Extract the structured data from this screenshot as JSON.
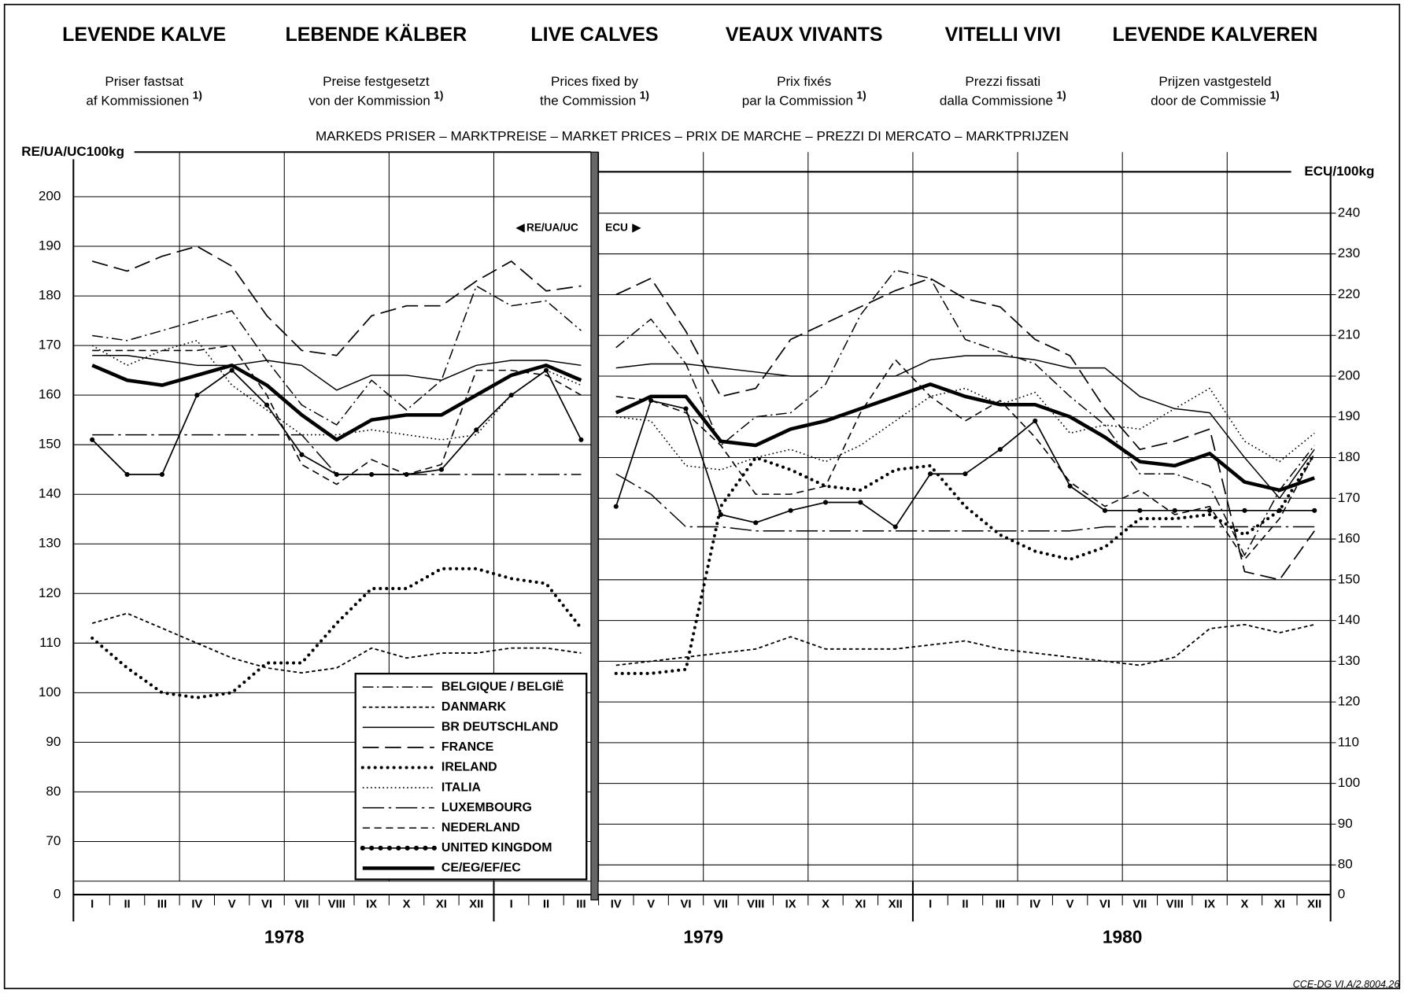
{
  "header": {
    "columns": [
      {
        "title": "LEVENDE KALVE",
        "lines": [
          "Priser fastsat",
          "af Kommissionen"
        ],
        "note": "1)"
      },
      {
        "title": "LEBENDE KÄLBER",
        "lines": [
          "Preise festgesetzt",
          "von der Kommission"
        ],
        "note": "1)"
      },
      {
        "title": "LIVE CALVES",
        "lines": [
          "Prices fixed by",
          "the Commission"
        ],
        "note": "1)"
      },
      {
        "title": "VEAUX VIVANTS",
        "lines": [
          "Prix fixés",
          "par la Commission"
        ],
        "note": "1)"
      },
      {
        "title": "VITELLI VIVI",
        "lines": [
          "Prezzi fissati",
          "dalla Commissione"
        ],
        "note": "1)"
      },
      {
        "title": "LEVENDE KALVEREN",
        "lines": [
          "Prijzen vastgesteld",
          "door de Commissie"
        ],
        "note": "1)"
      }
    ]
  },
  "footer": "CCE-DG VI.A/2.8004.26",
  "chart_data": {
    "type": "line",
    "subtitle": "MARKEDS PRISER – MARKTPREISE – MARKET PRICES – PRIX DE MARCHE – PREZZI DI MERCATO – MARKTPRIJZEN",
    "ylabel": "RE/UA/UC100kg",
    "y2label": "ECU/100kg",
    "annotations": [
      "RE/UA/UC",
      "ECU"
    ],
    "categories": [
      "I",
      "II",
      "III",
      "IV",
      "V",
      "VI",
      "VII",
      "VIII",
      "IX",
      "X",
      "XI",
      "XII",
      "I",
      "II",
      "III",
      "IV",
      "V",
      "VI",
      "VII",
      "VIII",
      "IX",
      "X",
      "XI",
      "XII",
      "I",
      "II",
      "III",
      "IV",
      "V",
      "VI",
      "VII",
      "VIII",
      "IX",
      "X",
      "XI",
      "XII"
    ],
    "years": [
      "1978",
      "1979",
      "1980"
    ],
    "ylim": [
      62,
      209
    ],
    "yticks": [
      70,
      80,
      90,
      100,
      110,
      120,
      130,
      140,
      150,
      160,
      170,
      180,
      190,
      200
    ],
    "ybreak": 0,
    "y2lim": [
      76,
      255
    ],
    "y2ticks": [
      80,
      90,
      100,
      110,
      120,
      130,
      140,
      150,
      160,
      170,
      180,
      190,
      200,
      210,
      220,
      230,
      240
    ],
    "y2break": 0,
    "series": [
      {
        "name": "BELGIQUE / BELGIË",
        "color": "#000000",
        "style": "dash-dot",
        "values": [
          172,
          171,
          173,
          175,
          177,
          167,
          158,
          154,
          163,
          157,
          163,
          182,
          178,
          179,
          173,
          null,
          null,
          null,
          null,
          null,
          null,
          null,
          null,
          null,
          null,
          null,
          null,
          null,
          null,
          null,
          null,
          null,
          null,
          null,
          null,
          null
        ],
        "y2_values": [
          null,
          null,
          null,
          null,
          null,
          null,
          null,
          null,
          null,
          null,
          null,
          null,
          null,
          null,
          null,
          207,
          214,
          203,
          183,
          190,
          191,
          198,
          215,
          226,
          224,
          209,
          206,
          203,
          195,
          188,
          176,
          176,
          173,
          156,
          172,
          183
        ],
        "axis": "y2"
      },
      {
        "name": "DANMARK",
        "color": "#000000",
        "style": "chevron",
        "values": [
          114,
          116,
          113,
          110,
          107,
          105,
          104,
          105,
          109,
          107,
          108,
          108,
          109,
          109,
          108,
          null,
          null,
          null,
          null,
          null,
          null,
          null,
          null,
          null,
          null,
          null,
          null,
          null,
          null,
          null,
          null,
          null,
          null,
          null,
          null,
          null
        ],
        "y2_values": [
          null,
          null,
          null,
          null,
          null,
          null,
          null,
          null,
          null,
          null,
          null,
          null,
          null,
          null,
          null,
          129,
          130,
          131,
          132,
          133,
          136,
          133,
          133,
          133,
          134,
          135,
          133,
          132,
          131,
          130,
          129,
          131,
          138,
          139,
          137,
          139
        ],
        "axis": "y2"
      },
      {
        "name": "BR DEUTSCHLAND",
        "color": "#000000",
        "style": "solid",
        "values": [
          168,
          168,
          167,
          166,
          166,
          167,
          166,
          161,
          164,
          164,
          163,
          166,
          167,
          167,
          166,
          null,
          null,
          null,
          null,
          null,
          null,
          null,
          null,
          null,
          null,
          null,
          null,
          null,
          null,
          null,
          null,
          null,
          null,
          null,
          null,
          null
        ],
        "y2_values": [
          null,
          null,
          null,
          null,
          null,
          null,
          null,
          null,
          null,
          null,
          null,
          null,
          null,
          null,
          null,
          202,
          203,
          203,
          202,
          201,
          200,
          200,
          200,
          200,
          204,
          205,
          205,
          204,
          202,
          202,
          195,
          192,
          191,
          180,
          170,
          182
        ],
        "axis": "y2"
      },
      {
        "name": "FRANCE",
        "color": "#000000",
        "style": "long-dash",
        "values": [
          187,
          185,
          188,
          190,
          186,
          176,
          169,
          168,
          176,
          178,
          178,
          183,
          187,
          181,
          182,
          null,
          null,
          null,
          null,
          null,
          null,
          null,
          null,
          null,
          null,
          null,
          null,
          null,
          null,
          null,
          null,
          null,
          null,
          null,
          null,
          null
        ],
        "y2_values": [
          null,
          null,
          null,
          null,
          null,
          null,
          null,
          null,
          null,
          null,
          null,
          null,
          null,
          null,
          null,
          220,
          224,
          211,
          195,
          197,
          209,
          213,
          217,
          221,
          224,
          219,
          217,
          209,
          205,
          192,
          182,
          184,
          187,
          152,
          150,
          162
        ],
        "axis": "y2"
      },
      {
        "name": "IRELAND",
        "color": "#000000",
        "style": "cross",
        "values": [
          111,
          105,
          100,
          99,
          100,
          106,
          106,
          114,
          121,
          121,
          125,
          125,
          123,
          122,
          113,
          null,
          null,
          null,
          null,
          null,
          null,
          null,
          null,
          null,
          null,
          null,
          null,
          null,
          null,
          null,
          null,
          null,
          null,
          null,
          null,
          null
        ],
        "y2_values": [
          null,
          null,
          null,
          null,
          null,
          null,
          null,
          null,
          null,
          null,
          null,
          null,
          null,
          null,
          null,
          127,
          127,
          128,
          168,
          180,
          177,
          173,
          172,
          177,
          178,
          168,
          161,
          157,
          155,
          158,
          165,
          165,
          166,
          161,
          167,
          181
        ],
        "axis": "y2"
      },
      {
        "name": "ITALIA",
        "color": "#000000",
        "style": "dotted",
        "values": [
          170,
          166,
          169,
          171,
          162,
          157,
          152,
          152,
          153,
          152,
          151,
          152,
          160,
          165,
          162,
          null,
          null,
          null,
          null,
          null,
          null,
          null,
          null,
          null,
          null,
          null,
          null,
          null,
          null,
          null,
          null,
          null,
          null,
          null,
          null,
          null
        ],
        "y2_values": [
          null,
          null,
          null,
          null,
          null,
          null,
          null,
          null,
          null,
          null,
          null,
          null,
          null,
          null,
          null,
          190,
          189,
          178,
          177,
          180,
          182,
          179,
          183,
          189,
          195,
          197,
          193,
          196,
          186,
          188,
          187,
          192,
          197,
          184,
          179,
          186
        ],
        "axis": "y2"
      },
      {
        "name": "LUXEMBOURG",
        "color": "#000000",
        "style": "dash-dot-long",
        "values": [
          152,
          152,
          152,
          152,
          152,
          152,
          152,
          144,
          144,
          144,
          144,
          144,
          144,
          144,
          144,
          null,
          null,
          null,
          null,
          null,
          null,
          null,
          null,
          null,
          null,
          null,
          null,
          null,
          null,
          null,
          null,
          null,
          null,
          null,
          null,
          null
        ],
        "y2_values": [
          null,
          null,
          null,
          null,
          null,
          null,
          null,
          null,
          null,
          null,
          null,
          null,
          null,
          null,
          null,
          176,
          171,
          163,
          163,
          162,
          162,
          162,
          162,
          162,
          162,
          162,
          162,
          162,
          162,
          163,
          163,
          163,
          163,
          163,
          163,
          163
        ],
        "axis": "y2"
      },
      {
        "name": "NEDERLAND",
        "color": "#000000",
        "style": "short-dash",
        "values": [
          169,
          169,
          169,
          169,
          170,
          160,
          146,
          142,
          147,
          144,
          146,
          165,
          165,
          164,
          160,
          null,
          null,
          null,
          null,
          null,
          null,
          null,
          null,
          null,
          null,
          null,
          null,
          null,
          null,
          null,
          null,
          null,
          null,
          null,
          null,
          null
        ],
        "y2_values": [
          null,
          null,
          null,
          null,
          null,
          null,
          null,
          null,
          null,
          null,
          null,
          null,
          null,
          null,
          null,
          195,
          194,
          191,
          183,
          171,
          171,
          173,
          191,
          204,
          195,
          189,
          194,
          185,
          174,
          168,
          172,
          166,
          168,
          155,
          165,
          181
        ],
        "axis": "y2"
      },
      {
        "name": "UNITED KINGDOM",
        "color": "#000000",
        "style": "dot-line",
        "values": [
          151,
          144,
          144,
          160,
          165,
          158,
          148,
          144,
          144,
          144,
          145,
          153,
          160,
          165,
          151,
          null,
          null,
          null,
          null,
          null,
          null,
          null,
          null,
          null,
          null,
          null,
          null,
          null,
          null,
          null,
          null,
          null,
          null,
          null,
          null,
          null
        ],
        "y2_values": [
          null,
          null,
          null,
          null,
          null,
          null,
          null,
          null,
          null,
          null,
          null,
          null,
          null,
          null,
          null,
          168,
          194,
          192,
          166,
          164,
          167,
          169,
          169,
          163,
          176,
          176,
          182,
          189,
          173,
          167,
          167,
          167,
          167,
          167,
          167,
          167
        ],
        "axis": "y2"
      },
      {
        "name": "CE/EG/EF/EC",
        "color": "#000000",
        "style": "thick",
        "values": [
          166,
          163,
          162,
          164,
          166,
          162,
          156,
          151,
          155,
          156,
          156,
          160,
          164,
          166,
          163,
          null,
          null,
          null,
          null,
          null,
          null,
          null,
          null,
          null,
          null,
          null,
          null,
          null,
          null,
          null,
          null,
          null,
          null,
          null,
          null,
          null
        ],
        "y2_values": [
          null,
          null,
          null,
          null,
          null,
          null,
          null,
          null,
          null,
          null,
          null,
          null,
          null,
          null,
          null,
          191,
          195,
          195,
          184,
          183,
          187,
          189,
          192,
          195,
          198,
          195,
          193,
          193,
          190,
          185,
          179,
          178,
          181,
          174,
          172,
          175
        ],
        "axis": "y2"
      }
    ]
  }
}
